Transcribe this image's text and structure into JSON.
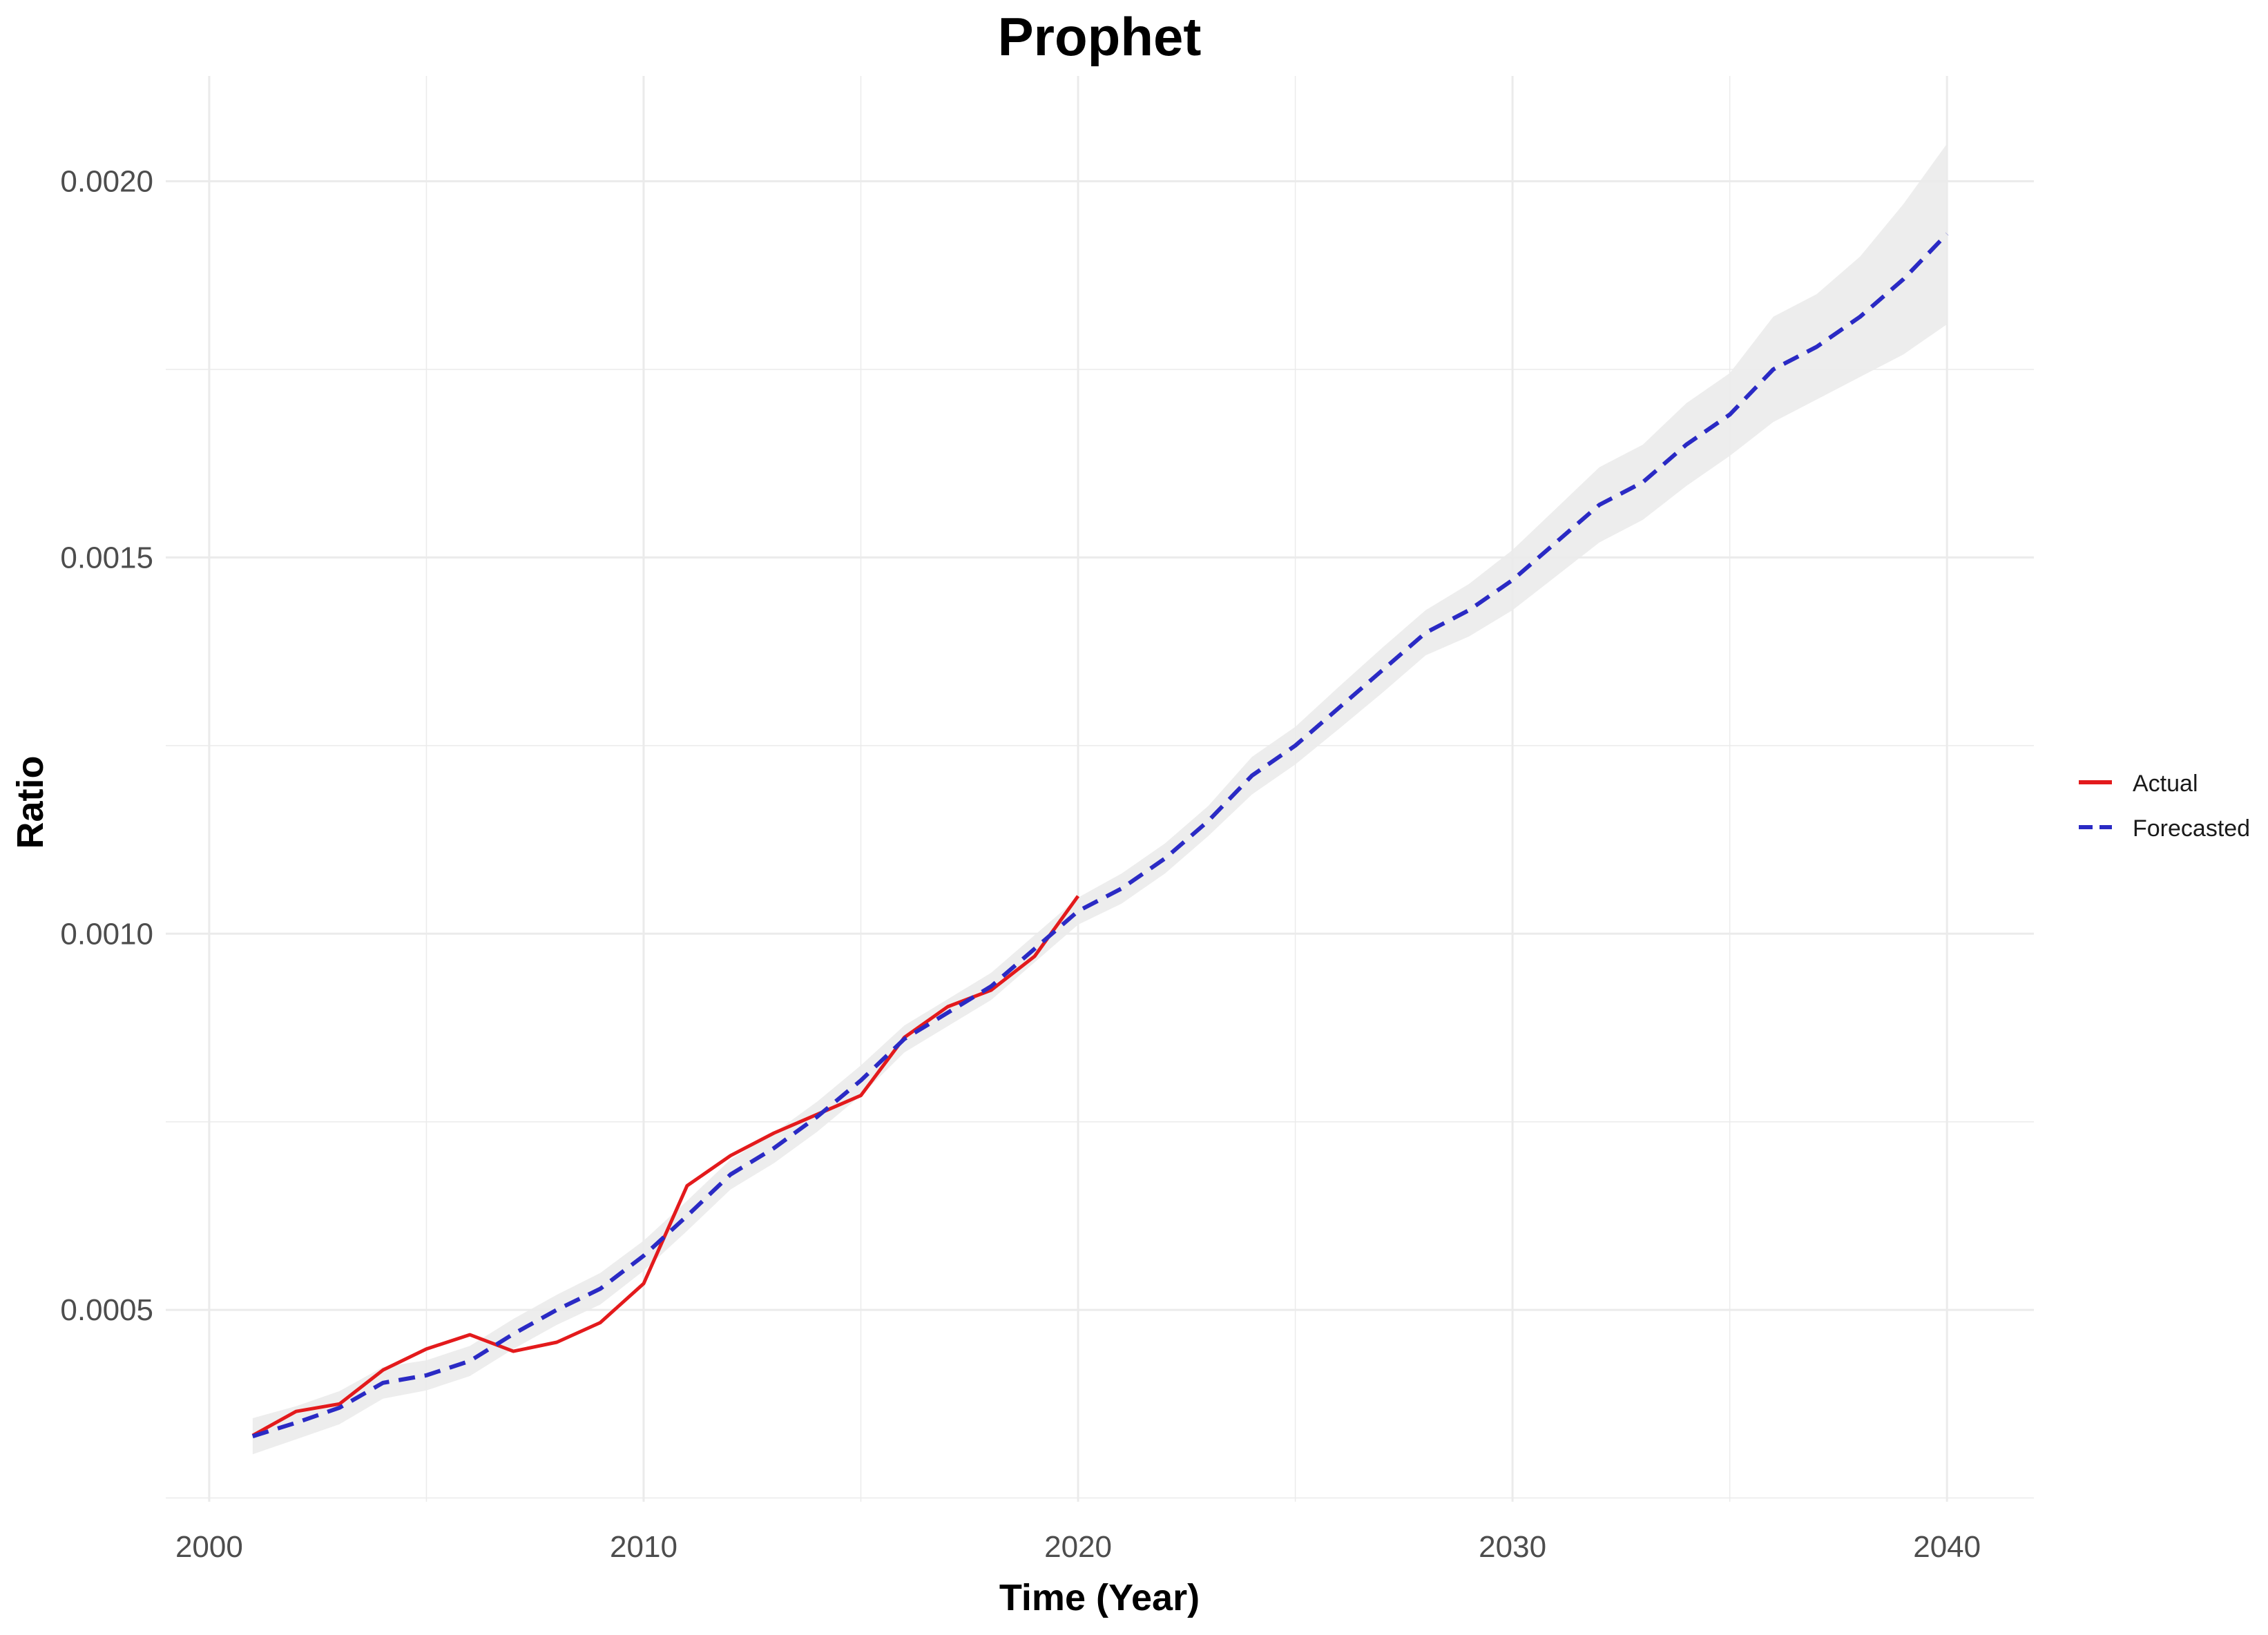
{
  "chart_data": {
    "type": "line",
    "title": "Prophet",
    "xlabel": "Time (Year)",
    "ylabel": "Ratio",
    "xlim": [
      1999,
      2042
    ],
    "ylim": [
      0.000245,
      0.00214
    ],
    "x_ticks": [
      2000,
      2010,
      2020,
      2030,
      2040
    ],
    "x_tick_labels": [
      "2000",
      "2010",
      "2020",
      "2030",
      "2040"
    ],
    "y_ticks": [
      0.0005,
      0.001,
      0.0015,
      0.002
    ],
    "y_tick_labels": [
      "0.0005",
      "0.0010",
      "0.0015",
      "0.0020"
    ],
    "grid": true,
    "legend_position": "right",
    "colors": {
      "actual": "#e31a1c",
      "forecasted": "#2a2ac4",
      "band": "#ebebeb",
      "grid": "#ebebeb"
    },
    "series": [
      {
        "name": "Actual",
        "style": "solid",
        "x": [
          2001,
          2002,
          2003,
          2004,
          2005,
          2006,
          2007,
          2008,
          2009,
          2010,
          2011,
          2012,
          2013,
          2014,
          2015,
          2016,
          2017,
          2018,
          2019,
          2020
        ],
        "y": [
          0.000333,
          0.000365,
          0.000375,
          0.00042,
          0.000448,
          0.000467,
          0.000445,
          0.000457,
          0.000483,
          0.000535,
          0.000665,
          0.000705,
          0.000735,
          0.00076,
          0.000785,
          0.000862,
          0.000903,
          0.000925,
          0.00097,
          0.00105
        ]
      },
      {
        "name": "Forecasted",
        "style": "dashed",
        "x": [
          2001,
          2002,
          2003,
          2004,
          2005,
          2006,
          2007,
          2008,
          2009,
          2010,
          2011,
          2012,
          2013,
          2014,
          2015,
          2016,
          2017,
          2018,
          2019,
          2020,
          2021,
          2022,
          2023,
          2024,
          2025,
          2026,
          2027,
          2028,
          2029,
          2030,
          2031,
          2032,
          2033,
          2034,
          2035,
          2036,
          2037,
          2038,
          2039,
          2040
        ],
        "y": [
          0.000332,
          0.00035,
          0.00037,
          0.000403,
          0.000413,
          0.000432,
          0.000468,
          0.0005,
          0.000528,
          0.000572,
          0.000625,
          0.00068,
          0.000715,
          0.000757,
          0.000805,
          0.00086,
          0.000895,
          0.00093,
          0.00098,
          0.00103,
          0.00106,
          0.0011,
          0.00115,
          0.00121,
          0.00125,
          0.0013,
          0.00135,
          0.0014,
          0.00143,
          0.00147,
          0.00152,
          0.00157,
          0.0016,
          0.00165,
          0.00169,
          0.00175,
          0.00178,
          0.00182,
          0.00187,
          0.00193
        ],
        "lower": [
          0.000308,
          0.000328,
          0.000348,
          0.000382,
          0.000393,
          0.000412,
          0.000448,
          0.00048,
          0.000507,
          0.000552,
          0.000605,
          0.00066,
          0.000695,
          0.000737,
          0.000785,
          0.000842,
          0.000877,
          0.000912,
          0.000962,
          0.001012,
          0.00104,
          0.00108,
          0.00113,
          0.001185,
          0.001225,
          0.001272,
          0.00132,
          0.00137,
          0.001395,
          0.00143,
          0.001475,
          0.00152,
          0.00155,
          0.001595,
          0.001635,
          0.00168,
          0.00171,
          0.00174,
          0.00177,
          0.00181
        ],
        "upper": [
          0.000356,
          0.000372,
          0.000392,
          0.000424,
          0.000433,
          0.000452,
          0.000488,
          0.00052,
          0.000549,
          0.000592,
          0.000645,
          0.0007,
          0.000735,
          0.000777,
          0.000825,
          0.000878,
          0.000913,
          0.000948,
          0.000998,
          0.001048,
          0.00108,
          0.00112,
          0.00117,
          0.001235,
          0.001275,
          0.001328,
          0.00138,
          0.00143,
          0.001465,
          0.00151,
          0.001565,
          0.00162,
          0.00165,
          0.001705,
          0.001745,
          0.00182,
          0.00185,
          0.0019,
          0.00197,
          0.00205
        ]
      }
    ]
  }
}
